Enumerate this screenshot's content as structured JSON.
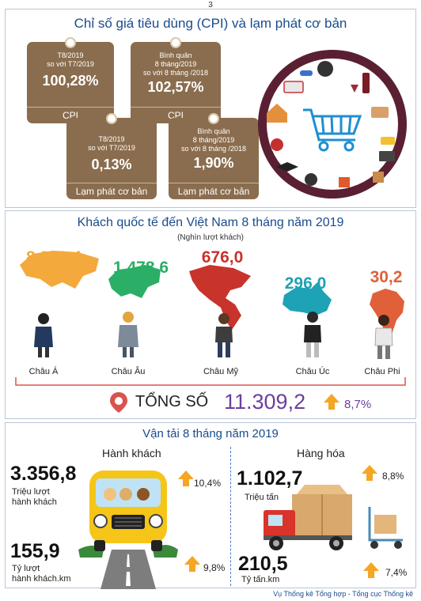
{
  "page_number": "3",
  "cpi": {
    "title": "Chỉ số giá tiêu dùng (CPI) và lạm phát cơ bản",
    "tags": [
      {
        "line1": "T8/2019",
        "line2": "so với T7/2019",
        "line3": "",
        "value": "100,28%",
        "label": "CPI"
      },
      {
        "line1": "Bình quân",
        "line2": "8 tháng/2019",
        "line3": "so với 8 tháng /2018",
        "value": "102,57%",
        "label": "CPI"
      },
      {
        "line1": "T8/2019",
        "line2": "so với T7/2019",
        "line3": "",
        "value": "0,13%",
        "label": "Lạm phát cơ bản"
      },
      {
        "line1": "Bình quân",
        "line2": "8 tháng/2019",
        "line3": "so với 8 tháng /2018",
        "value": "1,90%",
        "label": "Lạm phát cơ bản"
      }
    ],
    "tag_color": "#8a6d4e",
    "circle_color": "#5a2032"
  },
  "visitors": {
    "title": "Khách quốc tế đến Việt Nam 8 tháng năm 2019",
    "subtitle": "(Nghìn lượt khách)",
    "continents": [
      {
        "name": "Châu Á",
        "value": "8.828,4",
        "color": "#f3a93b"
      },
      {
        "name": "Châu Âu",
        "value": "1.478,6",
        "color": "#2bae66"
      },
      {
        "name": "Châu Mỹ",
        "value": "676,0",
        "color": "#c8332c"
      },
      {
        "name": "Châu Úc",
        "value": "296,0",
        "color": "#1ea2b5"
      },
      {
        "name": "Châu Phi",
        "value": "30,2",
        "color": "#e0603a"
      }
    ],
    "total_label": "TỔNG SỐ",
    "total_value": "11.309,2",
    "total_growth": "8,7%",
    "total_value_color": "#6b3fa0"
  },
  "transport": {
    "title": "Vận tải 8 tháng năm 2019",
    "passenger": {
      "heading": "Hành khách",
      "v1": "3.356,8",
      "u1a": "Triệu lượt",
      "u1b": "hành khách",
      "g1": "10,4%",
      "v2": "155,9",
      "u2a": "Tỷ lượt",
      "u2b": "hành khách.km",
      "g2": "9,8%"
    },
    "freight": {
      "heading": "Hàng hóa",
      "v1": "1.102,7",
      "u1a": "Triệu tấn",
      "g1": "8,8%",
      "v2": "210,5",
      "u2a": "Tỷ tấn.km",
      "g2": "7,4%"
    },
    "arrow_color": "#f5a623"
  },
  "footer": "Vụ Thống kê Tổng hợp - Tổng cục Thống kê"
}
